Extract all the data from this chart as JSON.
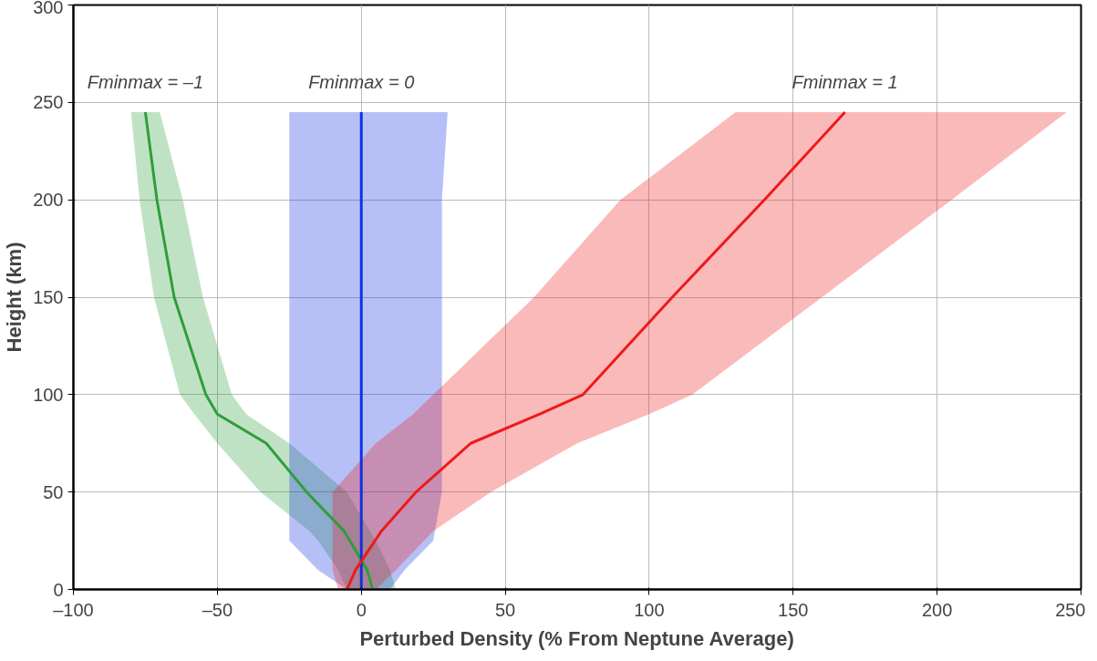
{
  "chart_data": {
    "type": "line",
    "orientation": "horizontal",
    "xlabel": "Perturbed Density (% From Neptune Average)",
    "ylabel": "Height (km)",
    "xlim": [
      -100,
      250
    ],
    "ylim": [
      0,
      300
    ],
    "xticks": [
      {
        "value": -100,
        "label": "–100"
      },
      {
        "value": -50,
        "label": "–50"
      },
      0,
      50,
      100,
      150,
      200,
      250
    ],
    "yticks": [
      0,
      50,
      100,
      150,
      200,
      250,
      300
    ],
    "grid": true,
    "series": [
      {
        "color": "#2e9e3a",
        "x": [
          0,
          10,
          25,
          30,
          50,
          75,
          90,
          100,
          150,
          200,
          245
        ],
        "values": [
          4,
          2,
          -4,
          -6,
          -19,
          -33,
          -50,
          -54,
          -65,
          -71,
          -75
        ],
        "lower": [
          -5,
          -8,
          -15,
          -18,
          -35,
          -50,
          -58,
          -63,
          -72,
          -77,
          -80
        ],
        "upper": [
          12,
          10,
          5,
          3,
          -5,
          -25,
          -40,
          -45,
          -55,
          -62,
          -70
        ]
      },
      {
        "color": "#1030e0",
        "x": [
          0,
          10,
          25,
          50,
          75,
          100,
          150,
          200,
          245
        ],
        "values": [
          0,
          0,
          0,
          0,
          0,
          0,
          0,
          0,
          0
        ],
        "lower": [
          -5,
          -15,
          -25,
          -25,
          -25,
          -25,
          -25,
          -25,
          -25
        ],
        "upper": [
          10,
          15,
          25,
          28,
          28,
          28,
          28,
          28,
          30
        ]
      },
      {
        "color": "#ee1a1a",
        "x": [
          0,
          10,
          30,
          50,
          75,
          90,
          100,
          150,
          200,
          245
        ],
        "values": [
          -5,
          -2,
          7,
          19,
          38,
          62,
          77,
          108,
          140,
          168
        ],
        "lower": [
          -8,
          -10,
          -10,
          -10,
          5,
          18,
          25,
          60,
          90,
          130
        ],
        "upper": [
          5,
          12,
          25,
          45,
          75,
          100,
          115,
          160,
          205,
          245
        ]
      }
    ],
    "annotations": [
      "Fminmax = –1",
      "Fminmax = 0",
      "Fminmax = 1"
    ]
  }
}
